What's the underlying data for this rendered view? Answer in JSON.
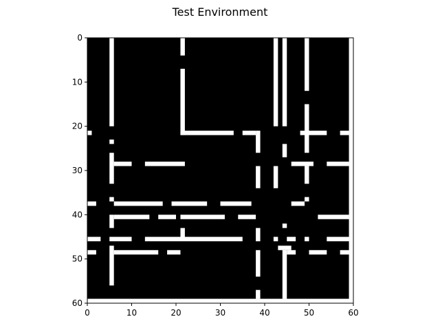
{
  "chart_data": {
    "type": "heatmap",
    "title": "Test Environment",
    "xlabel": "",
    "ylabel": "",
    "xlim": [
      0,
      60
    ],
    "ylim": [
      60,
      0
    ],
    "x_ticks": [
      0,
      10,
      20,
      30,
      40,
      50,
      60
    ],
    "y_ticks": [
      0,
      10,
      20,
      30,
      40,
      50,
      60
    ],
    "grid": false,
    "colormap": {
      "0": "#000000",
      "1": "#ffffff"
    },
    "cells_value_1": [
      {
        "x": [
          5,
          5
        ],
        "y": [
          0,
          19
        ]
      },
      {
        "x": [
          21,
          21
        ],
        "y": [
          0,
          3
        ]
      },
      {
        "x": [
          21,
          21
        ],
        "y": [
          7,
          21
        ]
      },
      {
        "x": [
          42,
          42
        ],
        "y": [
          0,
          19
        ]
      },
      {
        "x": [
          44,
          44
        ],
        "y": [
          0,
          19
        ]
      },
      {
        "x": [
          49,
          49
        ],
        "y": [
          0,
          11
        ]
      },
      {
        "x": [
          49,
          49
        ],
        "y": [
          15,
          25
        ]
      },
      {
        "x": [
          21,
          32
        ],
        "y": [
          21,
          21
        ]
      },
      {
        "x": [
          35,
          37
        ],
        "y": [
          21,
          21
        ]
      },
      {
        "x": [
          38,
          38
        ],
        "y": [
          21,
          25
        ]
      },
      {
        "x": [
          48,
          53
        ],
        "y": [
          21,
          21
        ]
      },
      {
        "x": [
          57,
          58
        ],
        "y": [
          21,
          21
        ]
      },
      {
        "x": [
          0,
          0
        ],
        "y": [
          21,
          21
        ]
      },
      {
        "x": [
          5,
          5
        ],
        "y": [
          23,
          23
        ]
      },
      {
        "x": [
          44,
          44
        ],
        "y": [
          24,
          26
        ]
      },
      {
        "x": [
          5,
          5
        ],
        "y": [
          26,
          32
        ]
      },
      {
        "x": [
          6,
          9
        ],
        "y": [
          28,
          28
        ]
      },
      {
        "x": [
          13,
          21
        ],
        "y": [
          28,
          28
        ]
      },
      {
        "x": [
          46,
          50
        ],
        "y": [
          28,
          28
        ]
      },
      {
        "x": [
          54,
          58
        ],
        "y": [
          28,
          28
        ]
      },
      {
        "x": [
          38,
          38
        ],
        "y": [
          29,
          33
        ]
      },
      {
        "x": [
          42,
          42
        ],
        "y": [
          29,
          33
        ]
      },
      {
        "x": [
          49,
          49
        ],
        "y": [
          29,
          32
        ]
      },
      {
        "x": [
          5,
          5
        ],
        "y": [
          36,
          36
        ]
      },
      {
        "x": [
          0,
          1
        ],
        "y": [
          37,
          37
        ]
      },
      {
        "x": [
          6,
          16
        ],
        "y": [
          37,
          37
        ]
      },
      {
        "x": [
          19,
          26
        ],
        "y": [
          37,
          37
        ]
      },
      {
        "x": [
          30,
          36
        ],
        "y": [
          37,
          37
        ]
      },
      {
        "x": [
          46,
          48
        ],
        "y": [
          37,
          37
        ]
      },
      {
        "x": [
          49,
          49
        ],
        "y": [
          36,
          36
        ]
      },
      {
        "x": [
          5,
          5
        ],
        "y": [
          40,
          42
        ]
      },
      {
        "x": [
          6,
          13
        ],
        "y": [
          40,
          40
        ]
      },
      {
        "x": [
          16,
          19
        ],
        "y": [
          40,
          40
        ]
      },
      {
        "x": [
          21,
          30
        ],
        "y": [
          40,
          40
        ]
      },
      {
        "x": [
          34,
          37
        ],
        "y": [
          40,
          40
        ]
      },
      {
        "x": [
          52,
          58
        ],
        "y": [
          40,
          40
        ]
      },
      {
        "x": [
          44,
          44
        ],
        "y": [
          42,
          42
        ]
      },
      {
        "x": [
          21,
          21
        ],
        "y": [
          43,
          44
        ]
      },
      {
        "x": [
          38,
          38
        ],
        "y": [
          43,
          45
        ]
      },
      {
        "x": [
          0,
          2
        ],
        "y": [
          45,
          45
        ]
      },
      {
        "x": [
          5,
          9
        ],
        "y": [
          45,
          45
        ]
      },
      {
        "x": [
          13,
          34
        ],
        "y": [
          45,
          45
        ]
      },
      {
        "x": [
          42,
          42
        ],
        "y": [
          45,
          45
        ]
      },
      {
        "x": [
          45,
          46
        ],
        "y": [
          45,
          45
        ]
      },
      {
        "x": [
          49,
          49
        ],
        "y": [
          45,
          45
        ]
      },
      {
        "x": [
          54,
          58
        ],
        "y": [
          45,
          45
        ]
      },
      {
        "x": [
          0,
          1
        ],
        "y": [
          48,
          48
        ]
      },
      {
        "x": [
          5,
          5
        ],
        "y": [
          47,
          55
        ]
      },
      {
        "x": [
          6,
          15
        ],
        "y": [
          48,
          48
        ]
      },
      {
        "x": [
          18,
          20
        ],
        "y": [
          48,
          48
        ]
      },
      {
        "x": [
          43,
          45
        ],
        "y": [
          47,
          47
        ]
      },
      {
        "x": [
          44,
          44
        ],
        "y": [
          48,
          58
        ]
      },
      {
        "x": [
          45,
          46
        ],
        "y": [
          48,
          48
        ]
      },
      {
        "x": [
          50,
          53
        ],
        "y": [
          48,
          48
        ]
      },
      {
        "x": [
          57,
          58
        ],
        "y": [
          48,
          48
        ]
      },
      {
        "x": [
          38,
          38
        ],
        "y": [
          48,
          53
        ]
      },
      {
        "x": [
          38,
          38
        ],
        "y": [
          57,
          58
        ]
      },
      {
        "x": [
          59,
          59
        ],
        "y": [
          0,
          59
        ]
      },
      {
        "x": [
          0,
          59
        ],
        "y": [
          59,
          59
        ]
      }
    ]
  }
}
